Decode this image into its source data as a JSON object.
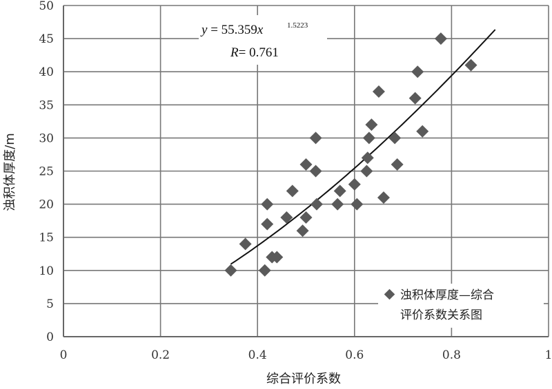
{
  "chart_data": {
    "type": "scatter",
    "xlabel": "综合评价系数",
    "ylabel": "浊积体厚度/m",
    "xlim": [
      0,
      1
    ],
    "ylim": [
      0,
      50
    ],
    "xticks": [
      0,
      0.2,
      0.4,
      0.6,
      0.8,
      1
    ],
    "xtick_labels": [
      "0",
      "0.2",
      "0.4",
      "0.6",
      "0.8",
      "1"
    ],
    "yticks": [
      0,
      5,
      10,
      15,
      20,
      25,
      30,
      35,
      40,
      45,
      50
    ],
    "ytick_labels": [
      "0",
      "5",
      "10",
      "15",
      "20",
      "25",
      "30",
      "35",
      "40",
      "45",
      "50"
    ],
    "grid": true,
    "legend_position": "bottom-right",
    "series": [
      {
        "name": "浊积体厚度—综合评价系数关系图",
        "marker": "diamond",
        "color": "#5a5a5a",
        "points": [
          {
            "x": 0.345,
            "y": 10
          },
          {
            "x": 0.375,
            "y": 14
          },
          {
            "x": 0.415,
            "y": 10
          },
          {
            "x": 0.42,
            "y": 17
          },
          {
            "x": 0.42,
            "y": 20
          },
          {
            "x": 0.43,
            "y": 12
          },
          {
            "x": 0.44,
            "y": 12
          },
          {
            "x": 0.46,
            "y": 18
          },
          {
            "x": 0.472,
            "y": 22
          },
          {
            "x": 0.493,
            "y": 16
          },
          {
            "x": 0.5,
            "y": 18
          },
          {
            "x": 0.5,
            "y": 26
          },
          {
            "x": 0.52,
            "y": 25
          },
          {
            "x": 0.52,
            "y": 30
          },
          {
            "x": 0.522,
            "y": 20
          },
          {
            "x": 0.565,
            "y": 20
          },
          {
            "x": 0.57,
            "y": 22
          },
          {
            "x": 0.6,
            "y": 23
          },
          {
            "x": 0.605,
            "y": 20
          },
          {
            "x": 0.625,
            "y": 25
          },
          {
            "x": 0.627,
            "y": 27
          },
          {
            "x": 0.63,
            "y": 30
          },
          {
            "x": 0.635,
            "y": 32
          },
          {
            "x": 0.65,
            "y": 37
          },
          {
            "x": 0.66,
            "y": 21
          },
          {
            "x": 0.683,
            "y": 30
          },
          {
            "x": 0.688,
            "y": 26
          },
          {
            "x": 0.725,
            "y": 36
          },
          {
            "x": 0.73,
            "y": 40
          },
          {
            "x": 0.74,
            "y": 31
          },
          {
            "x": 0.778,
            "y": 45
          },
          {
            "x": 0.84,
            "y": 41
          }
        ]
      }
    ],
    "trendline": {
      "type": "power",
      "coefficient": 55.359,
      "exponent": 1.5223,
      "x_range": [
        0.345,
        0.89
      ],
      "color": "#111111"
    },
    "annotation": {
      "equation_lhs": "y",
      "equation_mid": " = 55.359",
      "equation_var": "x",
      "equation_exp": "1.5223",
      "r_label": "R",
      "r_value": "= 0.761"
    },
    "legend_lines": [
      "浊积体厚度—综合",
      "评价系数关系图"
    ]
  }
}
